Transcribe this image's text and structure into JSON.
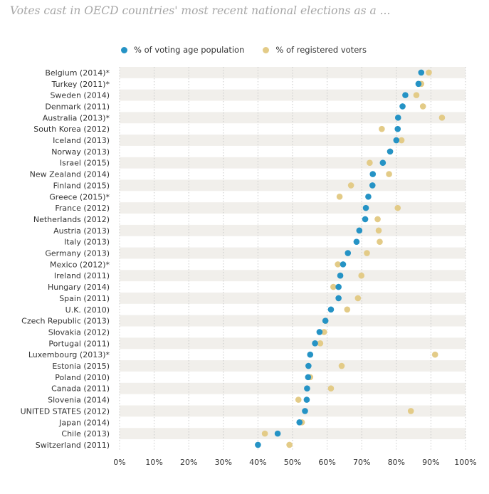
{
  "title": "Votes cast in OECD countries' most recent national elections as a ...",
  "legend": {
    "series0": "% of voting age population",
    "series1": "% of registered voters"
  },
  "chart_data": {
    "type": "scatter",
    "title": "Votes cast in OECD countries' most recent national elections as a ...",
    "xlabel": "",
    "ylabel": "",
    "xlim": [
      0,
      100
    ],
    "xticks": [
      0,
      10,
      20,
      30,
      40,
      50,
      60,
      70,
      80,
      90,
      100
    ],
    "xtick_labels": [
      "0%",
      "10%",
      "20%",
      "30%",
      "40%",
      "50%",
      "60%",
      "70%",
      "80%",
      "90%",
      "100%"
    ],
    "grid": true,
    "legend_position": "top",
    "categories": [
      "Belgium (2014)*",
      "Turkey (2011)*",
      "Sweden (2014)",
      "Denmark (2011)",
      "Australia (2013)*",
      "South Korea (2012)",
      "Iceland (2013)",
      "Norway (2013)",
      "Israel (2015)",
      "New Zealand (2014)",
      "Finland (2015)",
      "Greece (2015)*",
      "France (2012)",
      "Netherlands (2012)",
      "Austria (2013)",
      "Italy (2013)",
      "Germany (2013)",
      "Mexico (2012)*",
      "Ireland (2011)",
      "Hungary (2014)",
      "Spain (2011)",
      "U.K. (2010)",
      "Czech Republic (2013)",
      "Slovakia (2012)",
      "Portugal (2011)",
      "Luxembourg (2013)*",
      "Estonia (2015)",
      "Poland (2010)",
      "Canada (2011)",
      "Slovenia (2014)",
      "UNITED STATES (2012)",
      "Japan (2014)",
      "Chile (2013)",
      "Switzerland (2011)"
    ],
    "series": [
      {
        "name": "% of voting age population",
        "color": "#2593c5",
        "values": [
          87.2,
          86.4,
          82.6,
          81.8,
          80.5,
          80.4,
          80.0,
          78.2,
          76.1,
          73.2,
          73.1,
          71.9,
          71.2,
          71.0,
          69.3,
          68.5,
          66.0,
          64.6,
          63.8,
          63.3,
          63.3,
          61.1,
          59.5,
          57.8,
          56.5,
          55.1,
          54.6,
          54.5,
          54.2,
          54.1,
          53.6,
          52.0,
          45.7,
          40.0
        ]
      },
      {
        "name": "% of registered voters",
        "color": "#e3cb87",
        "values": [
          89.4,
          87.2,
          85.8,
          87.7,
          93.2,
          75.8,
          81.5,
          78.2,
          72.3,
          77.9,
          66.9,
          63.6,
          80.4,
          74.6,
          74.9,
          75.2,
          71.5,
          63.1,
          69.9,
          61.8,
          68.9,
          65.8,
          59.5,
          59.1,
          58.0,
          91.2,
          64.2,
          55.1,
          61.1,
          51.7,
          84.2,
          52.7,
          42.0,
          49.1
        ]
      }
    ]
  }
}
